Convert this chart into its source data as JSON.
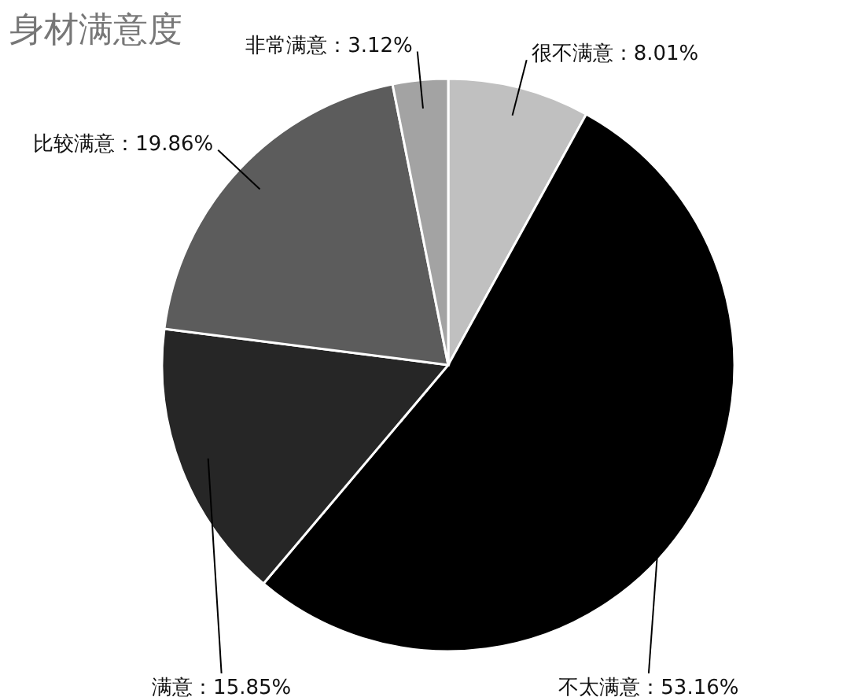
{
  "chart_data": {
    "type": "pie",
    "title": "身材满意度",
    "categories": [
      "很不满意",
      "不太满意",
      "满意",
      "比较满意",
      "非常满意"
    ],
    "values": [
      8.01,
      53.16,
      15.85,
      19.86,
      3.12
    ],
    "value_labels": [
      "8.01%",
      "53.16%",
      "15.85%",
      "19.86%",
      "3.12%"
    ],
    "colors": [
      "#c0c0c0",
      "#000000",
      "#262626",
      "#5c5c5c",
      "#a3a3a3"
    ]
  }
}
